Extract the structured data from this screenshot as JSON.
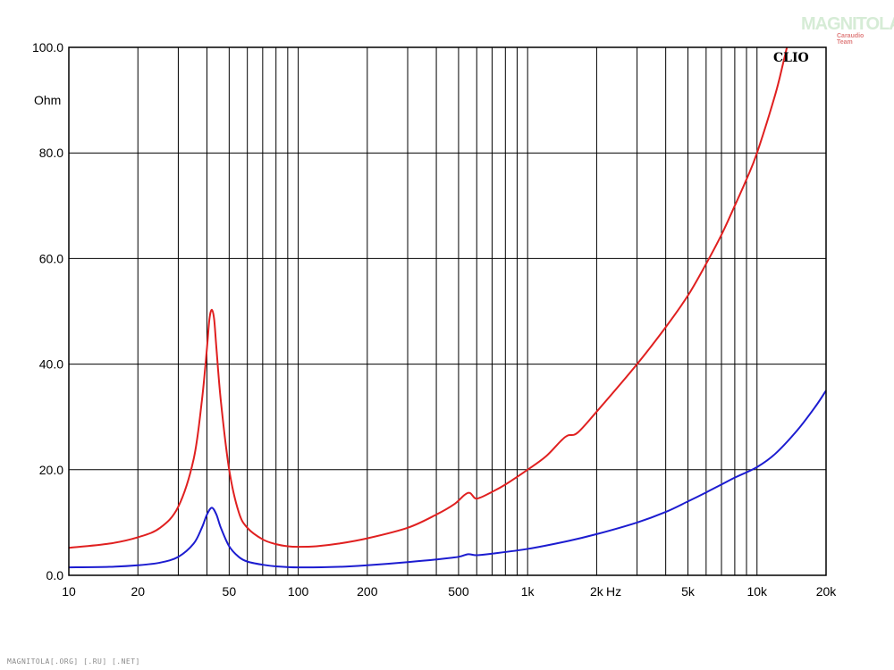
{
  "header": {
    "logo_text": "MAGNITOLA",
    "logo_subtext": "Caraudio Team"
  },
  "footer": {
    "text": "MAGNITOLA[.ORG] [.RU] [.NET]"
  },
  "chart_data": {
    "type": "line",
    "brand_label": "CLIO",
    "ylabel": "Ohm",
    "xlabel": "Hz",
    "xscale": "log",
    "xlim": [
      10,
      20000
    ],
    "ylim": [
      0,
      100
    ],
    "grid": true,
    "y_ticks": [
      {
        "value": 0,
        "label": "0.0"
      },
      {
        "value": 20,
        "label": "20.0"
      },
      {
        "value": 40,
        "label": "40.0"
      },
      {
        "value": 60,
        "label": "60.0"
      },
      {
        "value": 80,
        "label": "80.0"
      },
      {
        "value": 100,
        "label": "100.0"
      }
    ],
    "x_ticks": [
      {
        "value": 10,
        "label": "10"
      },
      {
        "value": 20,
        "label": "20"
      },
      {
        "value": 50,
        "label": "50"
      },
      {
        "value": 100,
        "label": "100"
      },
      {
        "value": 200,
        "label": "200"
      },
      {
        "value": 500,
        "label": "500"
      },
      {
        "value": 1000,
        "label": "1k"
      },
      {
        "value": 2000,
        "label": "2k"
      },
      {
        "value": 5000,
        "label": "5k"
      },
      {
        "value": 10000,
        "label": "10k"
      },
      {
        "value": 20000,
        "label": "20k"
      }
    ],
    "x_gridlines": [
      10,
      20,
      30,
      40,
      50,
      60,
      70,
      80,
      90,
      100,
      200,
      300,
      400,
      500,
      600,
      700,
      800,
      900,
      1000,
      2000,
      3000,
      4000,
      5000,
      6000,
      7000,
      8000,
      9000,
      10000,
      20000
    ],
    "series": [
      {
        "color": "#e02020",
        "points": [
          [
            10,
            5.2
          ],
          [
            15,
            6.0
          ],
          [
            20,
            7.2
          ],
          [
            25,
            9.0
          ],
          [
            30,
            13.0
          ],
          [
            35,
            22.0
          ],
          [
            38,
            33.0
          ],
          [
            40,
            43.0
          ],
          [
            41,
            48.5
          ],
          [
            42,
            50.3
          ],
          [
            43,
            48.5
          ],
          [
            44,
            43.0
          ],
          [
            46,
            33.0
          ],
          [
            50,
            20.0
          ],
          [
            55,
            12.0
          ],
          [
            60,
            9.0
          ],
          [
            70,
            6.8
          ],
          [
            80,
            5.9
          ],
          [
            90,
            5.5
          ],
          [
            100,
            5.4
          ],
          [
            120,
            5.5
          ],
          [
            150,
            6.0
          ],
          [
            200,
            7.0
          ],
          [
            300,
            9.0
          ],
          [
            400,
            11.5
          ],
          [
            480,
            13.5
          ],
          [
            530,
            15.2
          ],
          [
            560,
            15.6
          ],
          [
            590,
            14.6
          ],
          [
            620,
            14.7
          ],
          [
            700,
            15.8
          ],
          [
            800,
            17.2
          ],
          [
            1000,
            20.0
          ],
          [
            1200,
            22.5
          ],
          [
            1400,
            25.5
          ],
          [
            1500,
            26.5
          ],
          [
            1650,
            27.0
          ],
          [
            2000,
            31.0
          ],
          [
            3000,
            40.0
          ],
          [
            4000,
            47.0
          ],
          [
            5000,
            53.0
          ],
          [
            6000,
            59.0
          ],
          [
            7000,
            64.5
          ],
          [
            8000,
            70.0
          ],
          [
            9000,
            75.0
          ],
          [
            10000,
            80.0
          ],
          [
            12000,
            91.0
          ],
          [
            13000,
            97.0
          ],
          [
            13500,
            100.0
          ]
        ]
      },
      {
        "color": "#1c1cd0",
        "points": [
          [
            10,
            1.5
          ],
          [
            15,
            1.6
          ],
          [
            20,
            1.9
          ],
          [
            25,
            2.4
          ],
          [
            30,
            3.5
          ],
          [
            35,
            6.0
          ],
          [
            38,
            9.0
          ],
          [
            40,
            11.5
          ],
          [
            42,
            12.8
          ],
          [
            44,
            11.5
          ],
          [
            46,
            9.0
          ],
          [
            50,
            5.5
          ],
          [
            55,
            3.5
          ],
          [
            60,
            2.6
          ],
          [
            70,
            2.0
          ],
          [
            80,
            1.7
          ],
          [
            100,
            1.5
          ],
          [
            150,
            1.6
          ],
          [
            200,
            1.9
          ],
          [
            300,
            2.5
          ],
          [
            400,
            3.0
          ],
          [
            500,
            3.5
          ],
          [
            550,
            4.0
          ],
          [
            600,
            3.8
          ],
          [
            700,
            4.1
          ],
          [
            1000,
            5.0
          ],
          [
            1500,
            6.5
          ],
          [
            2000,
            7.8
          ],
          [
            3000,
            10.0
          ],
          [
            4000,
            12.0
          ],
          [
            5000,
            14.0
          ],
          [
            6000,
            15.7
          ],
          [
            7000,
            17.2
          ],
          [
            8000,
            18.5
          ],
          [
            10000,
            20.5
          ],
          [
            12000,
            23.0
          ],
          [
            15000,
            27.5
          ],
          [
            18000,
            32.0
          ],
          [
            20000,
            35.0
          ]
        ]
      }
    ]
  }
}
